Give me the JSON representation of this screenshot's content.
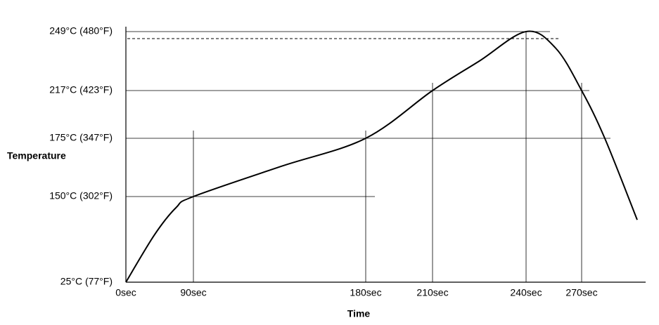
{
  "chart_data": {
    "type": "line",
    "x_label": "Time",
    "y_label": "Temperature",
    "x": [
      0,
      38,
      67,
      90,
      136,
      180,
      210,
      225,
      240,
      256,
      270,
      282.5,
      300
    ],
    "series": [
      {
        "color": "#000000",
        "values": [
          25,
          94,
          134,
          150,
          163,
          175,
          217,
          233,
          249,
          240,
          217,
          175,
          116
        ]
      }
    ],
    "xticks": [
      {
        "value": 0,
        "label": "0sec"
      },
      {
        "value": 90,
        "label": "90sec"
      },
      {
        "value": 180,
        "label": "180sec"
      },
      {
        "value": 210,
        "label": "210sec"
      },
      {
        "value": 240,
        "label": "240sec"
      },
      {
        "value": 270,
        "label": "270sec"
      }
    ],
    "yticks": [
      {
        "value": 25,
        "label": "25°C (77°F)"
      },
      {
        "value": 150,
        "label": "150°C (302°F)"
      },
      {
        "value": 175,
        "label": "175°C (347°F)"
      },
      {
        "value": 217,
        "label": "217°C (423°F)"
      },
      {
        "value": 249,
        "label": "249°C (480°F)"
      }
    ],
    "grid": true
  }
}
